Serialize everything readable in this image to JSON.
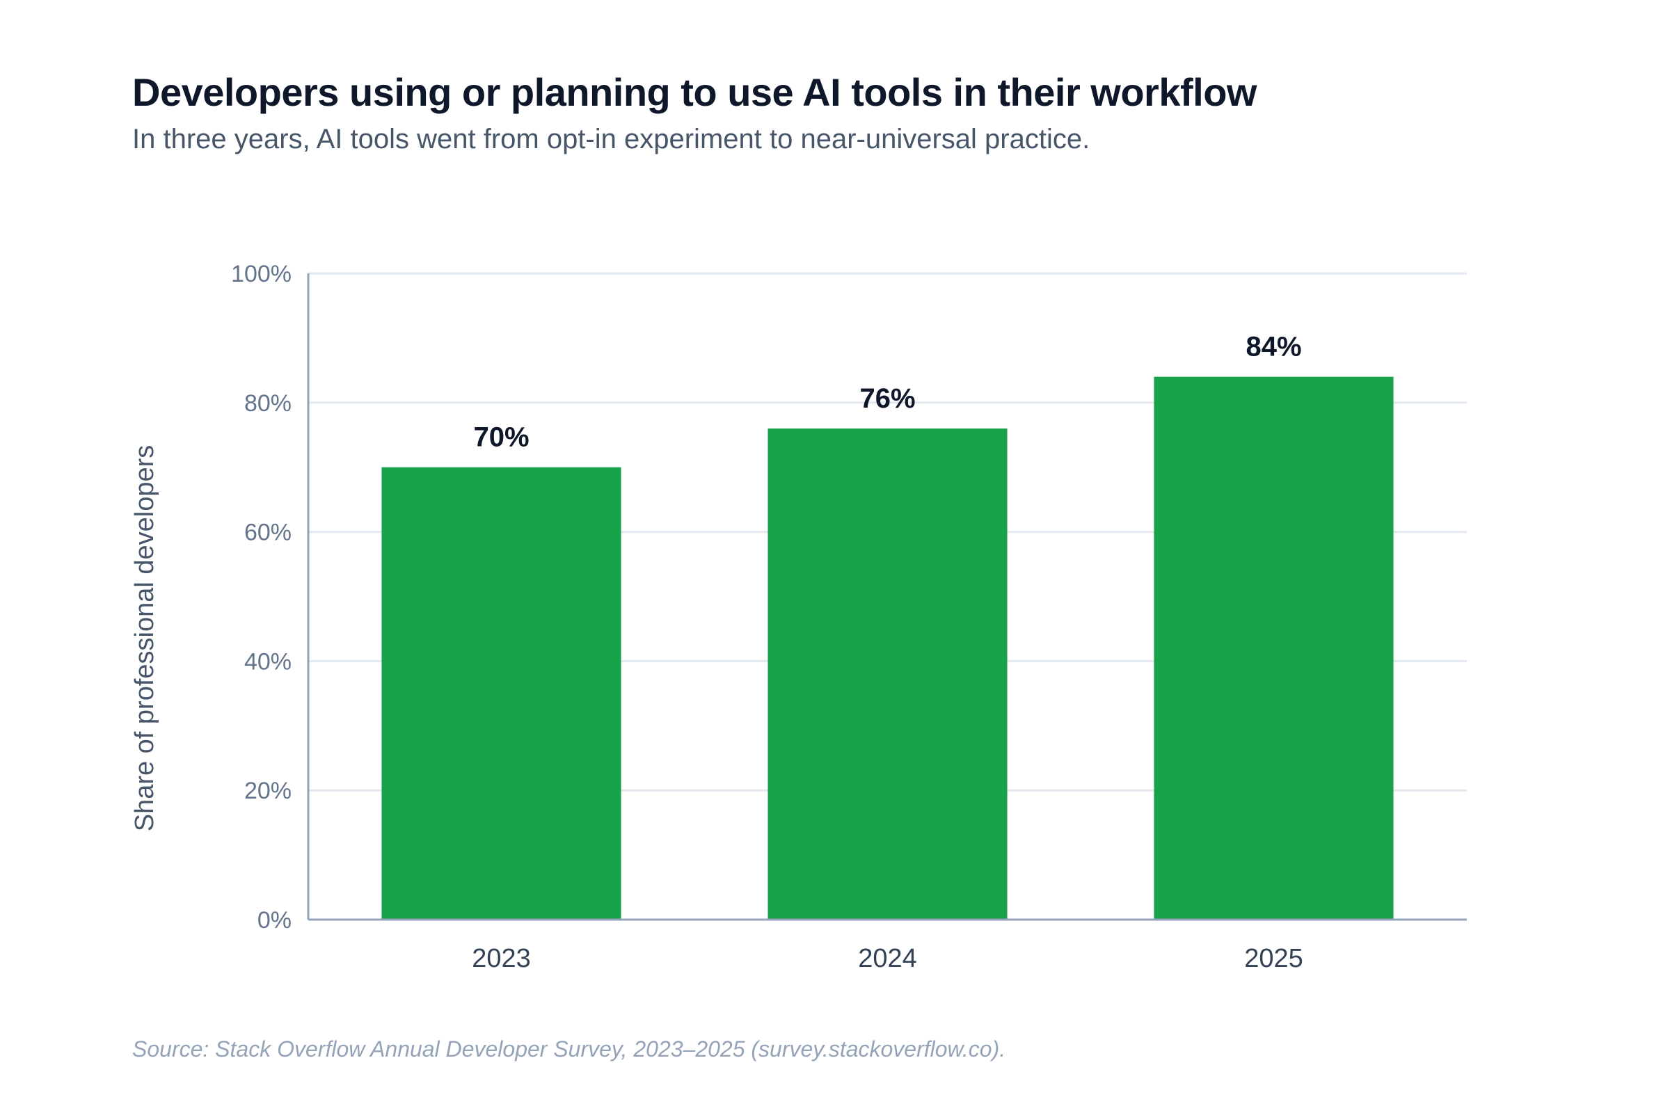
{
  "chart_data": {
    "type": "bar",
    "title": "Developers using or planning to use AI tools in their workflow",
    "subtitle": "In three years, AI tools went from opt-in experiment to near-universal practice.",
    "source": "Source: Stack Overflow Annual Developer Survey, 2023–2025 (survey.stackoverflow.co).",
    "xlabel": "",
    "ylabel": "Share of professional developers",
    "categories": [
      "2023",
      "2024",
      "2025"
    ],
    "values": [
      70,
      76,
      84
    ],
    "value_labels": [
      "70%",
      "76%",
      "84%"
    ],
    "ylim": [
      0,
      100
    ],
    "yticks": [
      0,
      20,
      40,
      60,
      80,
      100
    ],
    "ytick_labels": [
      "0%",
      "20%",
      "40%",
      "60%",
      "80%",
      "100%"
    ],
    "grid": true,
    "legend": "none",
    "colors": {
      "bar": "#18a34a",
      "grid": "#e2e8f0",
      "axis": "#94a3b8"
    }
  }
}
